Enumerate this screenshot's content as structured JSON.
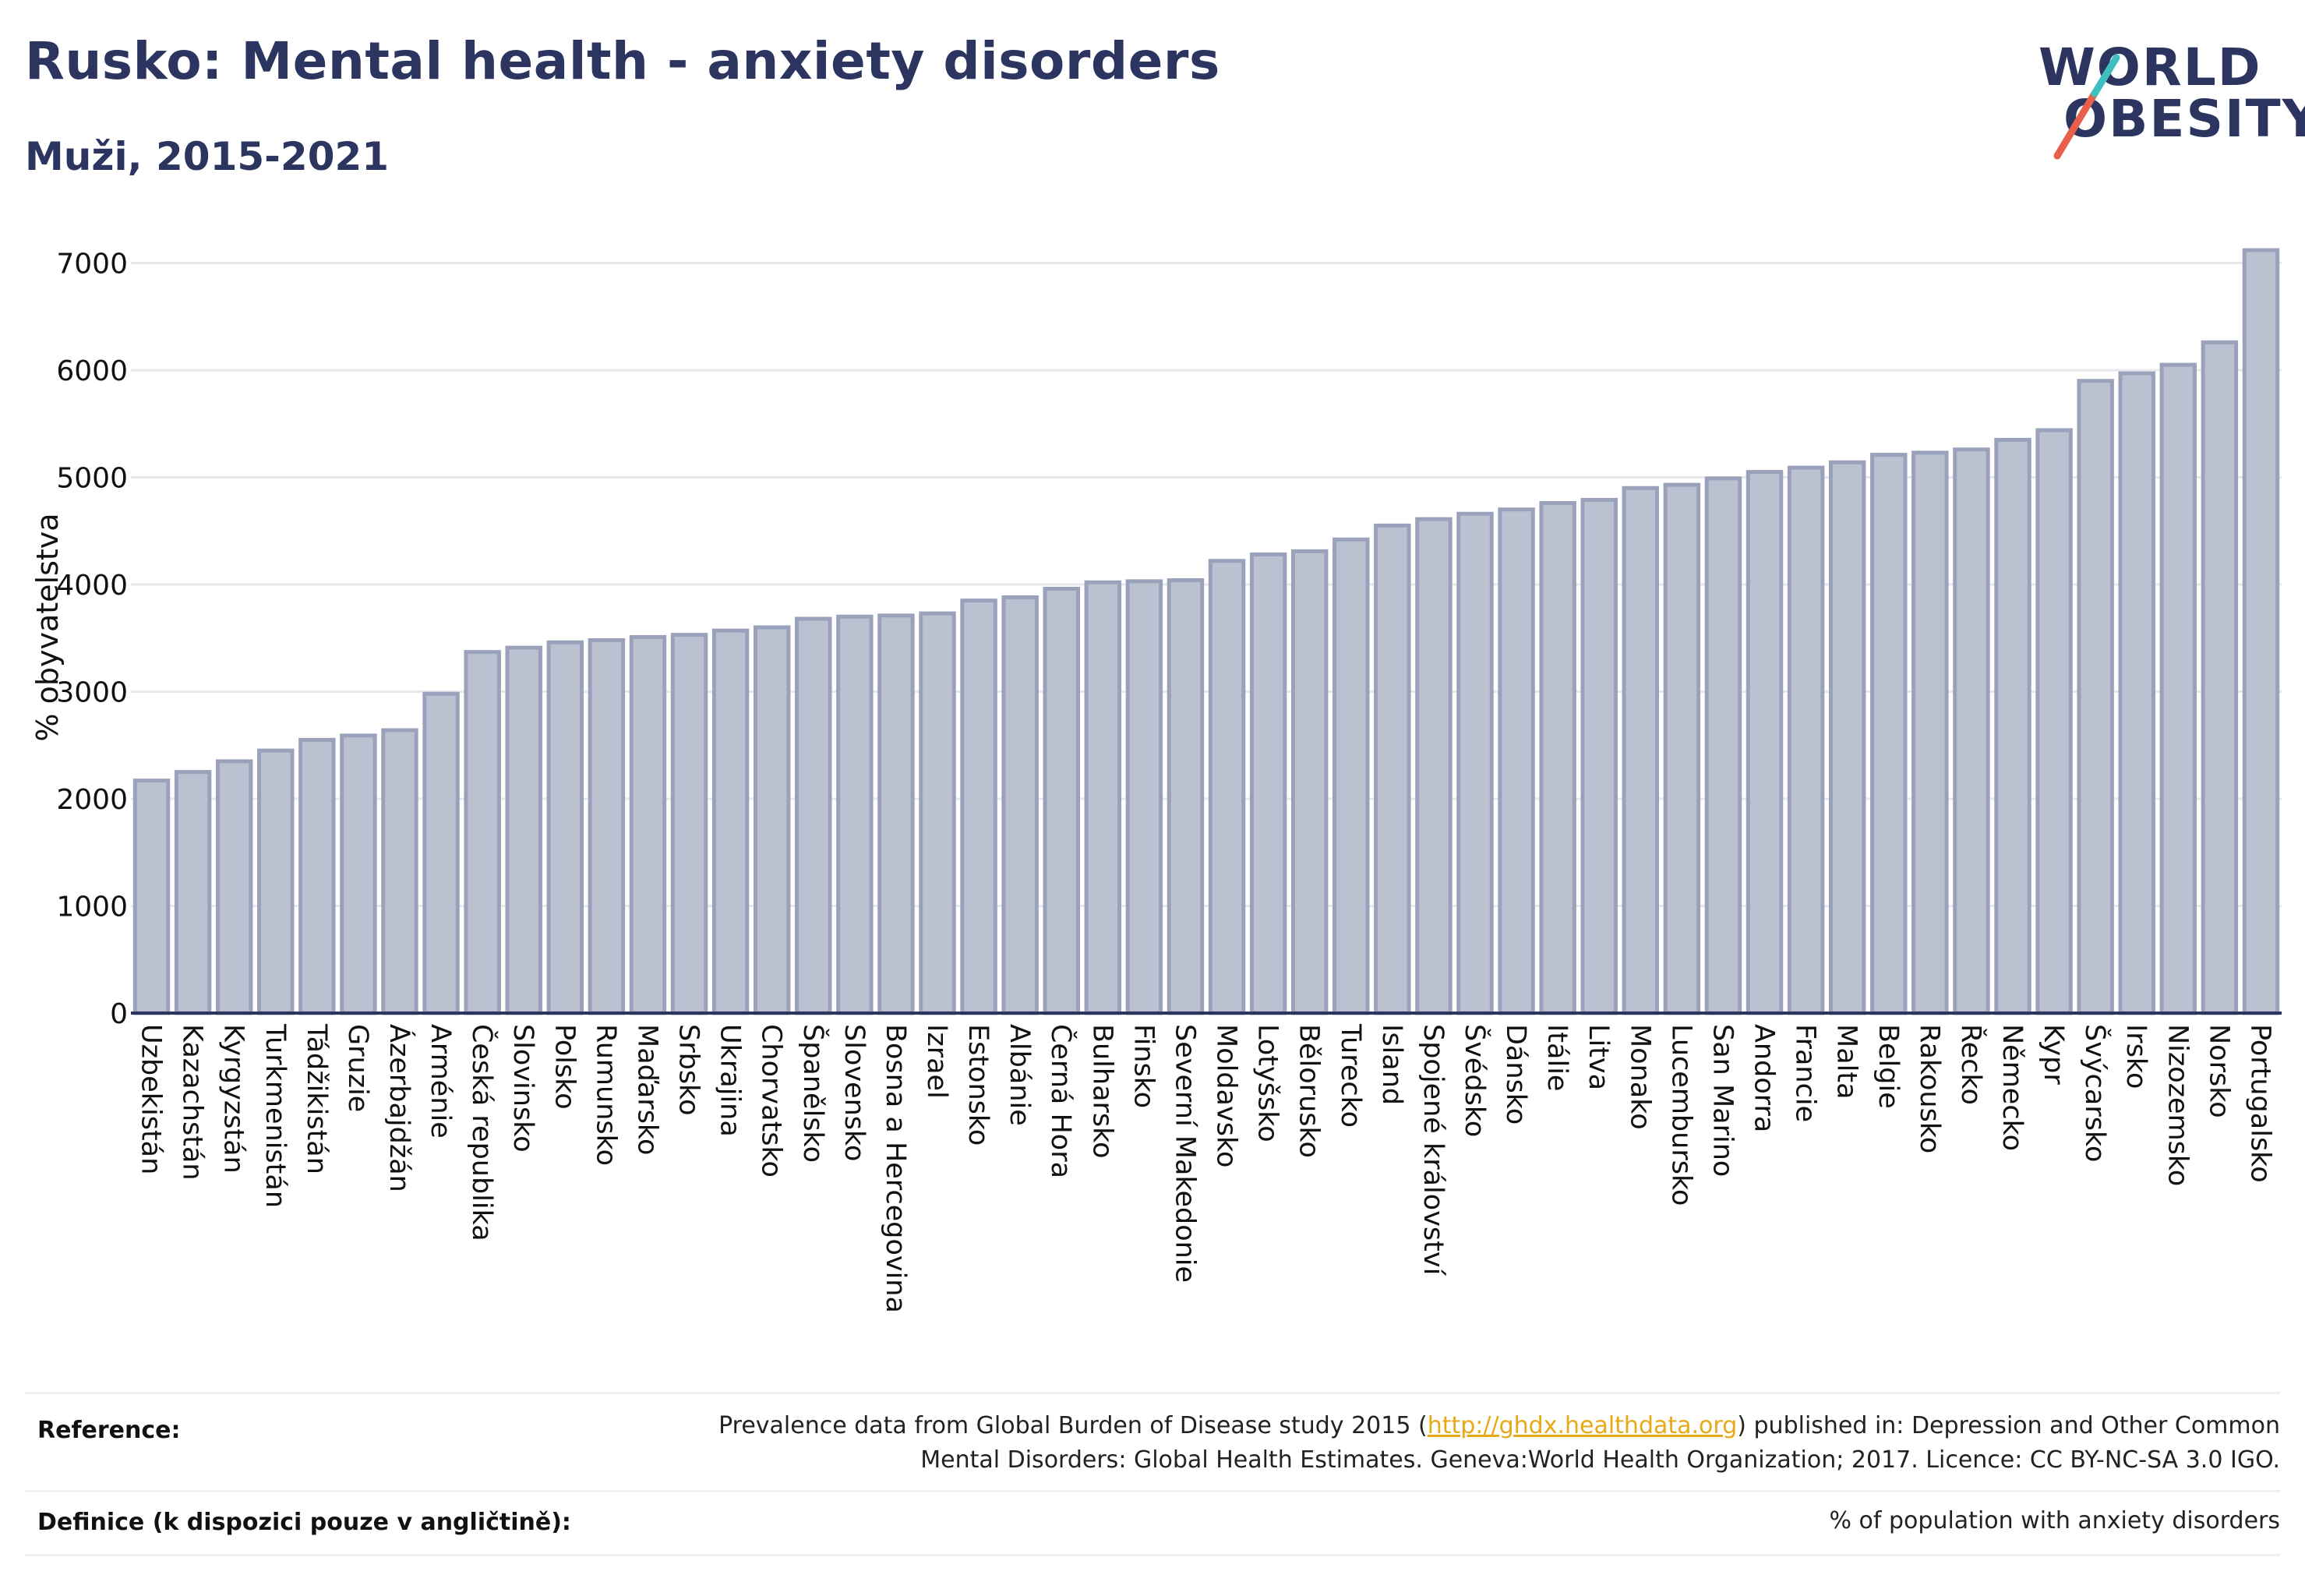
{
  "header": {
    "title": "Rusko: Mental health - anxiety disorders",
    "subtitle": "Muži, 2015-2021"
  },
  "logo": {
    "line1": "WORLD",
    "line2": "OBESITY",
    "slash_colors": [
      "#e8604c",
      "#3fbfbf"
    ]
  },
  "colors": {
    "bar_fill": "#bcc1d1",
    "bar_stroke": "#9aa2bb",
    "axis": "#2b3560",
    "grid": "#e6e8ee",
    "text": "#2b3560"
  },
  "chart_data": {
    "type": "bar",
    "ylabel": "% obyvatelstva",
    "ylim": [
      0,
      7200
    ],
    "yticks": [
      0,
      1000,
      2000,
      3000,
      4000,
      5000,
      6000,
      7000
    ],
    "grid": true,
    "categories": [
      "Uzbekistán",
      "Kazachstán",
      "Kyrgyzstán",
      "Turkmenistán",
      "Tádžikistán",
      "Gruzie",
      "Ázerbajdžán",
      "Arménie",
      "Česká republika",
      "Slovinsko",
      "Polsko",
      "Rumunsko",
      "Maďarsko",
      "Srbsko",
      "Ukrajina",
      "Chorvatsko",
      "Španělsko",
      "Slovensko",
      "Bosna a Hercegovina",
      "Izrael",
      "Estonsko",
      "Albánie",
      "Černá Hora",
      "Bulharsko",
      "Finsko",
      "Severní Makedonie",
      "Moldavsko",
      "Lotyšsko",
      "Bělorusko",
      "Turecko",
      "Island",
      "Spojené království",
      "Švédsko",
      "Dánsko",
      "Itálie",
      "Litva",
      "Monako",
      "Lucembursko",
      "San Marino",
      "Andorra",
      "Francie",
      "Malta",
      "Belgie",
      "Rakousko",
      "Řecko",
      "Německo",
      "Kypr",
      "Švýcarsko",
      "Irsko",
      "Nizozemsko",
      "Norsko",
      "Portugalsko"
    ],
    "values": [
      2170,
      2250,
      2350,
      2450,
      2550,
      2590,
      2640,
      2980,
      3370,
      3410,
      3460,
      3480,
      3510,
      3530,
      3570,
      3600,
      3680,
      3700,
      3710,
      3730,
      3850,
      3880,
      3960,
      4020,
      4030,
      4040,
      4220,
      4280,
      4310,
      4420,
      4550,
      4610,
      4660,
      4700,
      4760,
      4790,
      4900,
      4930,
      4990,
      5050,
      5090,
      5140,
      5210,
      5230,
      5260,
      5350,
      5440,
      5900,
      5970,
      6050,
      6260,
      7120
    ]
  },
  "footer": {
    "reference_label": "Reference:",
    "reference_text_before": "Prevalence data from Global Burden of Disease study 2015 (",
    "reference_link": "http://ghdx.healthdata.org",
    "reference_text_after": ") published in: Depression and Other Common",
    "reference_line2": "Mental Disorders: Global Health Estimates. Geneva:World Health Organization; 2017. Licence: CC BY-NC-SA 3.0 IGO.",
    "definition_label": "Definice (k dispozici pouze v angličtině):",
    "definition_text": "% of population with anxiety disorders"
  }
}
